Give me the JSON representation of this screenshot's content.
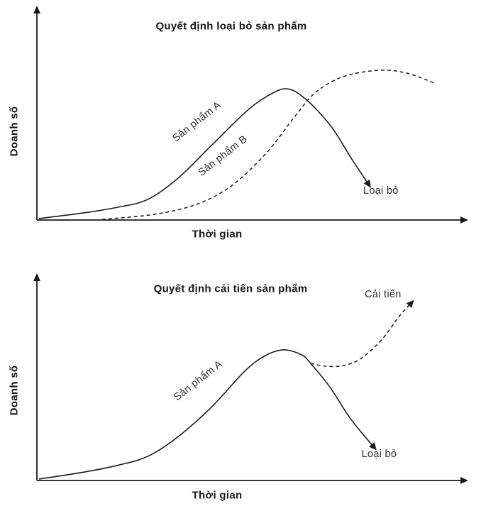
{
  "figure": {
    "background": "#ffffff",
    "line_color": "#1a1a1a",
    "title_color": "#161616",
    "annotation_color": "#2e2e2e"
  },
  "chart_data": [
    {
      "type": "line",
      "title": "Quyết định loại bỏ sản phẩm",
      "xlabel": "Thời gian",
      "ylabel": "Doanh số",
      "x_axis": {
        "min": 0,
        "max": 100,
        "ticks": [],
        "arrow": true
      },
      "y_axis": {
        "min": 0,
        "max": 100,
        "ticks": [],
        "arrow": true
      },
      "grid": false,
      "legend": "none",
      "series": [
        {
          "name": "Sản phẩm A",
          "style": "solid",
          "arrow_end": true,
          "points": [
            [
              0.5,
              0.7
            ],
            [
              11,
              3.4
            ],
            [
              19,
              6.1
            ],
            [
              26,
              9.8
            ],
            [
              33,
              19.7
            ],
            [
              41,
              35.6
            ],
            [
              49,
              51.5
            ],
            [
              54,
              59
            ],
            [
              58.6,
              62.7
            ],
            [
              63,
              58
            ],
            [
              69,
              45
            ],
            [
              74,
              29
            ],
            [
              78.3,
              15.9
            ]
          ]
        },
        {
          "name": "Sản phẩm B",
          "style": "dashed",
          "arrow_end": false,
          "points": [
            [
              15.3,
              0.3
            ],
            [
              27.6,
              2.7
            ],
            [
              37.5,
              7.5
            ],
            [
              45.7,
              16.3
            ],
            [
              54,
              32.2
            ],
            [
              60.5,
              49.2
            ],
            [
              65.5,
              61
            ],
            [
              72,
              68.5
            ],
            [
              80.3,
              71.5
            ],
            [
              86.8,
              70.2
            ],
            [
              93.8,
              65.1
            ]
          ]
        }
      ],
      "annotations": [
        {
          "text": "Sản phẩm A",
          "x": 38,
          "y": 45.8,
          "rotation": -38
        },
        {
          "text": "Sản phẩm B",
          "x": 44.1,
          "y": 29.5,
          "rotation": -38
        },
        {
          "text": "Loại bỏ",
          "x": 80.8,
          "y": 12.5,
          "rotation": 0
        }
      ]
    },
    {
      "type": "line",
      "title": "Quyết định cải tiến sản phẩm",
      "xlabel": "Thời gian",
      "ylabel": "Doanh số",
      "x_axis": {
        "min": 0,
        "max": 100,
        "ticks": [],
        "arrow": true
      },
      "y_axis": {
        "min": 0,
        "max": 100,
        "ticks": [],
        "arrow": true
      },
      "grid": false,
      "legend": "none",
      "series": [
        {
          "name": "Sản phẩm A",
          "style": "solid",
          "arrow_end": true,
          "points": [
            [
              0.5,
              0.7
            ],
            [
              11.2,
              4.2
            ],
            [
              19.4,
              7.7
            ],
            [
              26,
              11.9
            ],
            [
              32.6,
              20.7
            ],
            [
              40.8,
              35.8
            ],
            [
              49,
              54.4
            ],
            [
              54,
              62.1
            ],
            [
              58.1,
              64.6
            ],
            [
              62.2,
              62.1
            ],
            [
              64.3,
              57.9
            ],
            [
              68.8,
              46.3
            ],
            [
              73.7,
              30.5
            ],
            [
              79.6,
              15.4
            ]
          ]
        },
        {
          "name": "Cải tiến",
          "style": "dashed",
          "arrow_end": true,
          "points": [
            [
              64.3,
              57.9
            ],
            [
              67.9,
              56.5
            ],
            [
              72,
              56.8
            ],
            [
              76.2,
              60.4
            ],
            [
              81.1,
              69.8
            ],
            [
              85.2,
              81.4
            ],
            [
              88.4,
              88.8
            ]
          ]
        }
      ],
      "annotations": [
        {
          "text": "Sản phẩm A",
          "x": 38.3,
          "y": 48.1,
          "rotation": -38
        },
        {
          "text": "Cải tiến",
          "x": 81.3,
          "y": 90.5,
          "rotation": 0
        },
        {
          "text": "Loại bỏ",
          "x": 80.4,
          "y": 11.6,
          "rotation": 0
        }
      ]
    }
  ]
}
